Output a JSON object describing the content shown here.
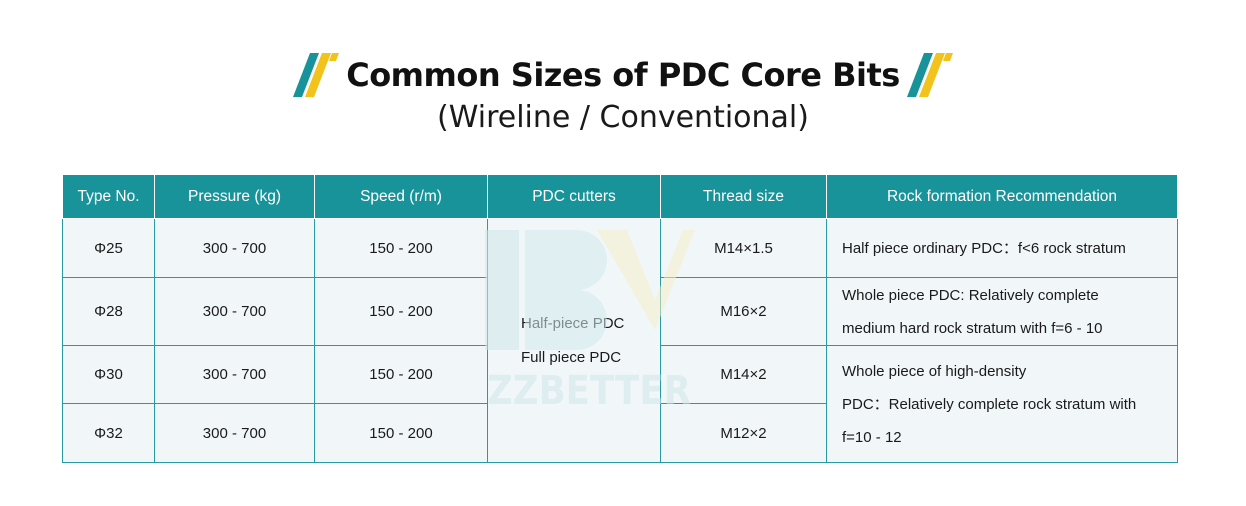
{
  "title": "Common Sizes of PDC Core Bits",
  "subtitle": "(Wireline / Conventional)",
  "watermark_text": "ZZBETTER",
  "colors": {
    "header_bg": "#18939a",
    "cell_bg": "#f1f7f9",
    "accent_yellow": "#f2c31b",
    "accent_teal": "#18939a"
  },
  "table": {
    "headers": [
      "Type No.",
      "Pressure (kg)",
      "Speed (r/m)",
      "PDC cutters",
      "Thread size",
      "Rock formation Recommendation"
    ],
    "rows": [
      {
        "type": "Φ25",
        "pressure": "300 - 700",
        "speed": "150 - 200",
        "thread": "M14×1.5"
      },
      {
        "type": "Φ28",
        "pressure": "300 - 700",
        "speed": "150 - 200",
        "thread": "M16×2"
      },
      {
        "type": "Φ30",
        "pressure": "300 - 700",
        "speed": "150 - 200",
        "thread": "M14×2"
      },
      {
        "type": "Φ32",
        "pressure": "300 - 700",
        "speed": "150 - 200",
        "thread": "M12×2"
      }
    ],
    "cutters": [
      "Half-piece PDC",
      "Full piece PDC"
    ],
    "rock": {
      "r1": [
        "Half piece ordinary PDC：f<6 rock stratum"
      ],
      "r2": [
        "Whole piece PDC: Relatively complete",
        "medium hard rock stratum with f=6 - 10"
      ],
      "r3": [
        "Whole piece of high-density",
        "PDC：Relatively complete rock stratum with",
        "f=10 - 12"
      ]
    }
  }
}
